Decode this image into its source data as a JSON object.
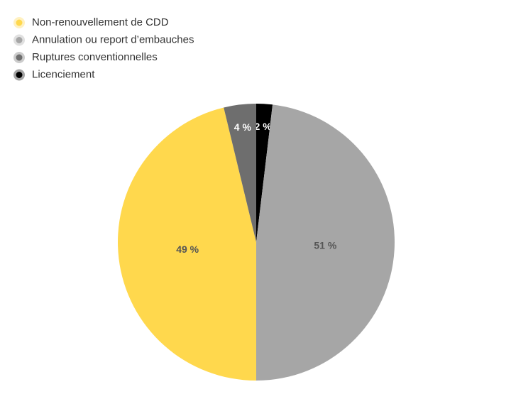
{
  "chart_data": {
    "type": "pie",
    "categories": [
      "Non-renouvellement de CDD",
      "Annulation ou report d’embauches",
      "Ruptures conventionnelles",
      "Licenciement"
    ],
    "values": [
      49,
      51,
      4,
      2
    ],
    "value_labels": [
      "49 %",
      "51 %",
      "4 %",
      "2 %"
    ],
    "colors": [
      "#ffd84d",
      "#a6a6a6",
      "#6e6e6e",
      "#000000"
    ],
    "legend": "top-left"
  }
}
